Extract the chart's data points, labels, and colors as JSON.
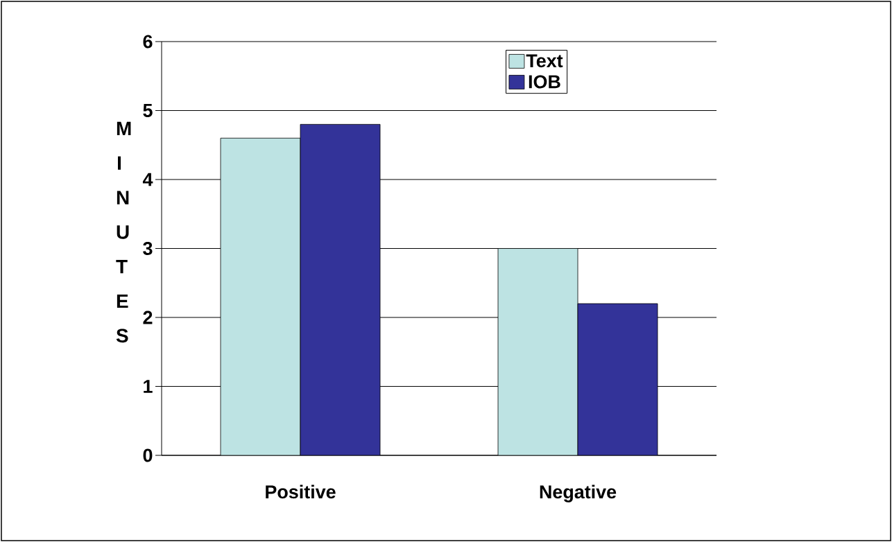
{
  "chart_data": {
    "type": "bar",
    "ylabel": "MINUTES",
    "categories": [
      "Positive",
      "Negative"
    ],
    "series": [
      {
        "name": "Text",
        "color": "#bde3e3",
        "values": [
          4.6,
          3
        ]
      },
      {
        "name": "IOB",
        "color": "#333399",
        "values": [
          4.8,
          2.2
        ]
      }
    ],
    "ylim": [
      0,
      6
    ],
    "yticks": [
      0,
      1,
      2,
      3,
      4,
      5,
      6
    ],
    "grid": "y",
    "legend": "top right"
  }
}
